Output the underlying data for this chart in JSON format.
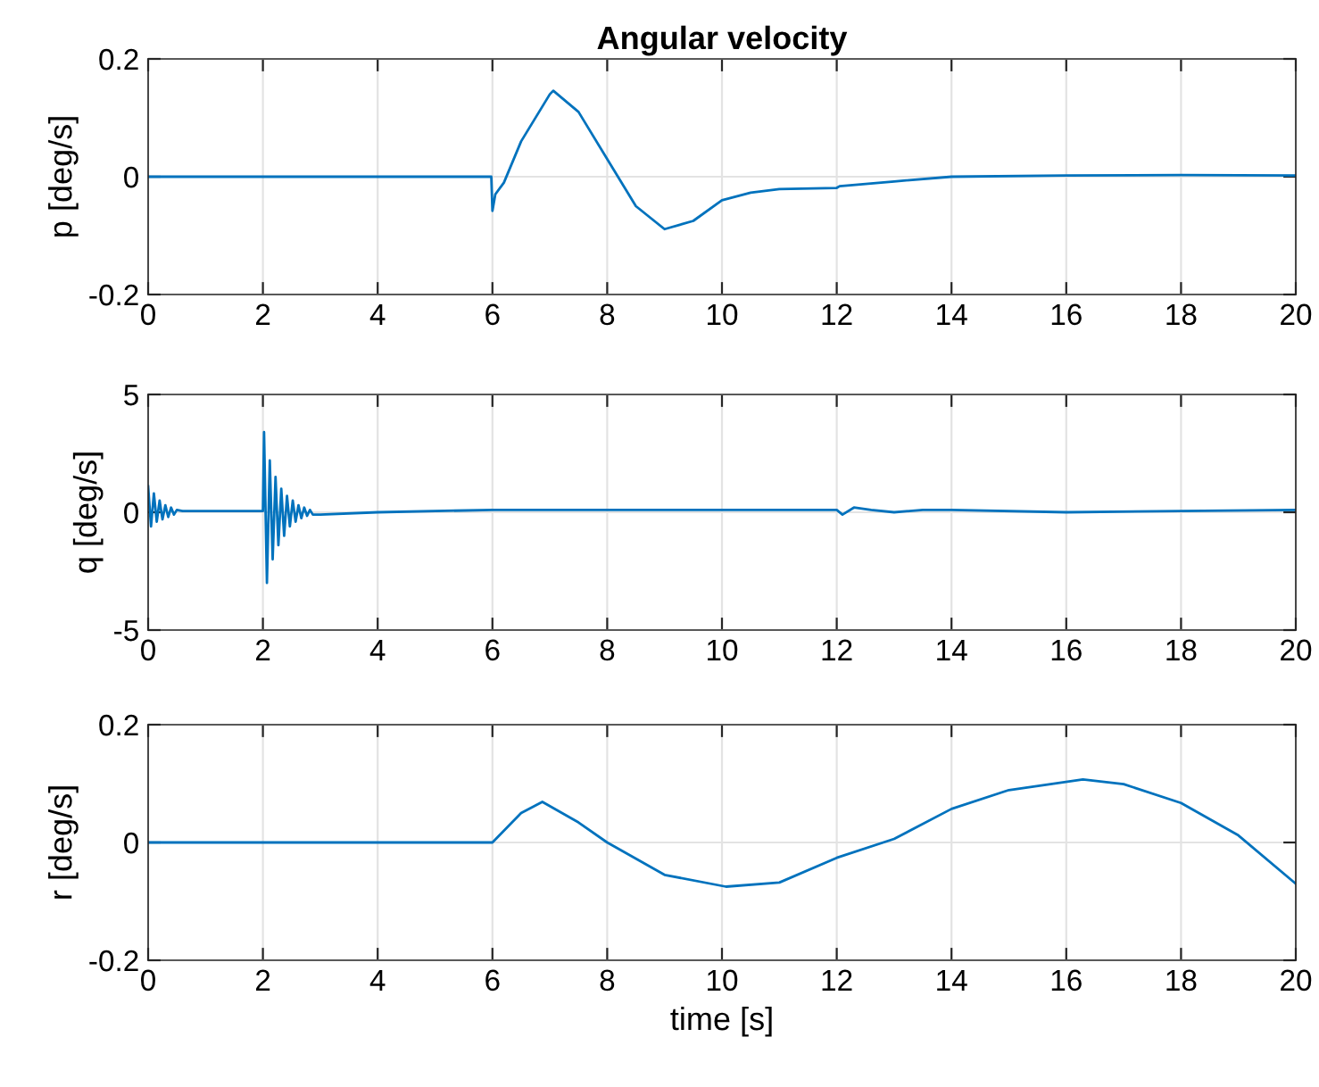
{
  "chart_data": [
    {
      "type": "line",
      "title": "Angular velocity",
      "ylabel": "p [deg/s]",
      "xlim": [
        0,
        20
      ],
      "xticks": [
        0,
        2,
        4,
        6,
        8,
        10,
        12,
        14,
        16,
        18,
        20
      ],
      "ylim": [
        -0.2,
        0.2
      ],
      "yticks": [
        -0.2,
        0,
        0.2
      ],
      "grid": true,
      "series": [
        {
          "color": "#0072bd",
          "x": [
            0,
            5.98,
            6.0,
            6.05,
            6.2,
            6.5,
            7.0,
            7.06,
            7.5,
            8.0,
            8.5,
            9.0,
            9.5,
            10.0,
            10.5,
            11.0,
            12.0,
            12.05,
            13.0,
            14.0,
            16.0,
            18.0,
            20.0
          ],
          "values": [
            0,
            0,
            -0.058,
            -0.03,
            -0.01,
            0.06,
            0.14,
            0.146,
            0.11,
            0.03,
            -0.05,
            -0.089,
            -0.075,
            -0.04,
            -0.027,
            -0.021,
            -0.019,
            -0.016,
            -0.008,
            0,
            0.002,
            0.003,
            0.002
          ]
        }
      ]
    },
    {
      "type": "line",
      "ylabel": "q [deg/s]",
      "xlim": [
        0,
        20
      ],
      "xticks": [
        0,
        2,
        4,
        6,
        8,
        10,
        12,
        14,
        16,
        18,
        20
      ],
      "ylim": [
        -5,
        5
      ],
      "yticks": [
        -5,
        0,
        5
      ],
      "grid": true,
      "series": [
        {
          "color": "#0072bd",
          "x": [
            0.0,
            0.05,
            0.1,
            0.15,
            0.2,
            0.25,
            0.3,
            0.35,
            0.4,
            0.45,
            0.5,
            0.6,
            2.0,
            2.02,
            2.07,
            2.12,
            2.17,
            2.22,
            2.27,
            2.32,
            2.37,
            2.42,
            2.47,
            2.52,
            2.57,
            2.62,
            2.67,
            2.72,
            2.77,
            2.82,
            2.87,
            3.0,
            4.0,
            6.0,
            10.0,
            12.0,
            12.1,
            12.3,
            12.6,
            13.0,
            13.5,
            14.0,
            16.0,
            20.0
          ],
          "values": [
            1.1,
            -0.6,
            0.8,
            -0.4,
            0.5,
            -0.3,
            0.3,
            -0.2,
            0.2,
            -0.1,
            0.1,
            0.05,
            0.05,
            3.4,
            -3.0,
            2.2,
            -2.0,
            1.5,
            -1.4,
            1.0,
            -1.0,
            0.7,
            -0.6,
            0.5,
            -0.4,
            0.3,
            -0.25,
            0.2,
            -0.15,
            0.1,
            -0.1,
            -0.1,
            0,
            0.1,
            0.1,
            0.1,
            -0.1,
            0.2,
            0.1,
            0,
            0.1,
            0.1,
            0,
            0.1
          ]
        }
      ]
    },
    {
      "type": "line",
      "ylabel": "r [deg/s]",
      "xlabel": "time [s]",
      "xlim": [
        0,
        20
      ],
      "xticks": [
        0,
        2,
        4,
        6,
        8,
        10,
        12,
        14,
        16,
        18,
        20
      ],
      "ylim": [
        -0.2,
        0.2
      ],
      "yticks": [
        -0.2,
        0,
        0.2
      ],
      "grid": true,
      "series": [
        {
          "color": "#0072bd",
          "x": [
            0,
            6.0,
            6.5,
            6.87,
            7.5,
            8.0,
            9.0,
            10.07,
            11.0,
            12.0,
            13.0,
            14.0,
            15.0,
            16.29,
            17.0,
            18.0,
            19.0,
            20.0
          ],
          "values": [
            0,
            0,
            0.05,
            0.069,
            0.034,
            0,
            -0.055,
            -0.075,
            -0.068,
            -0.026,
            0.006,
            0.057,
            0.089,
            0.107,
            0.099,
            0.067,
            0.012,
            -0.07
          ]
        }
      ]
    }
  ]
}
